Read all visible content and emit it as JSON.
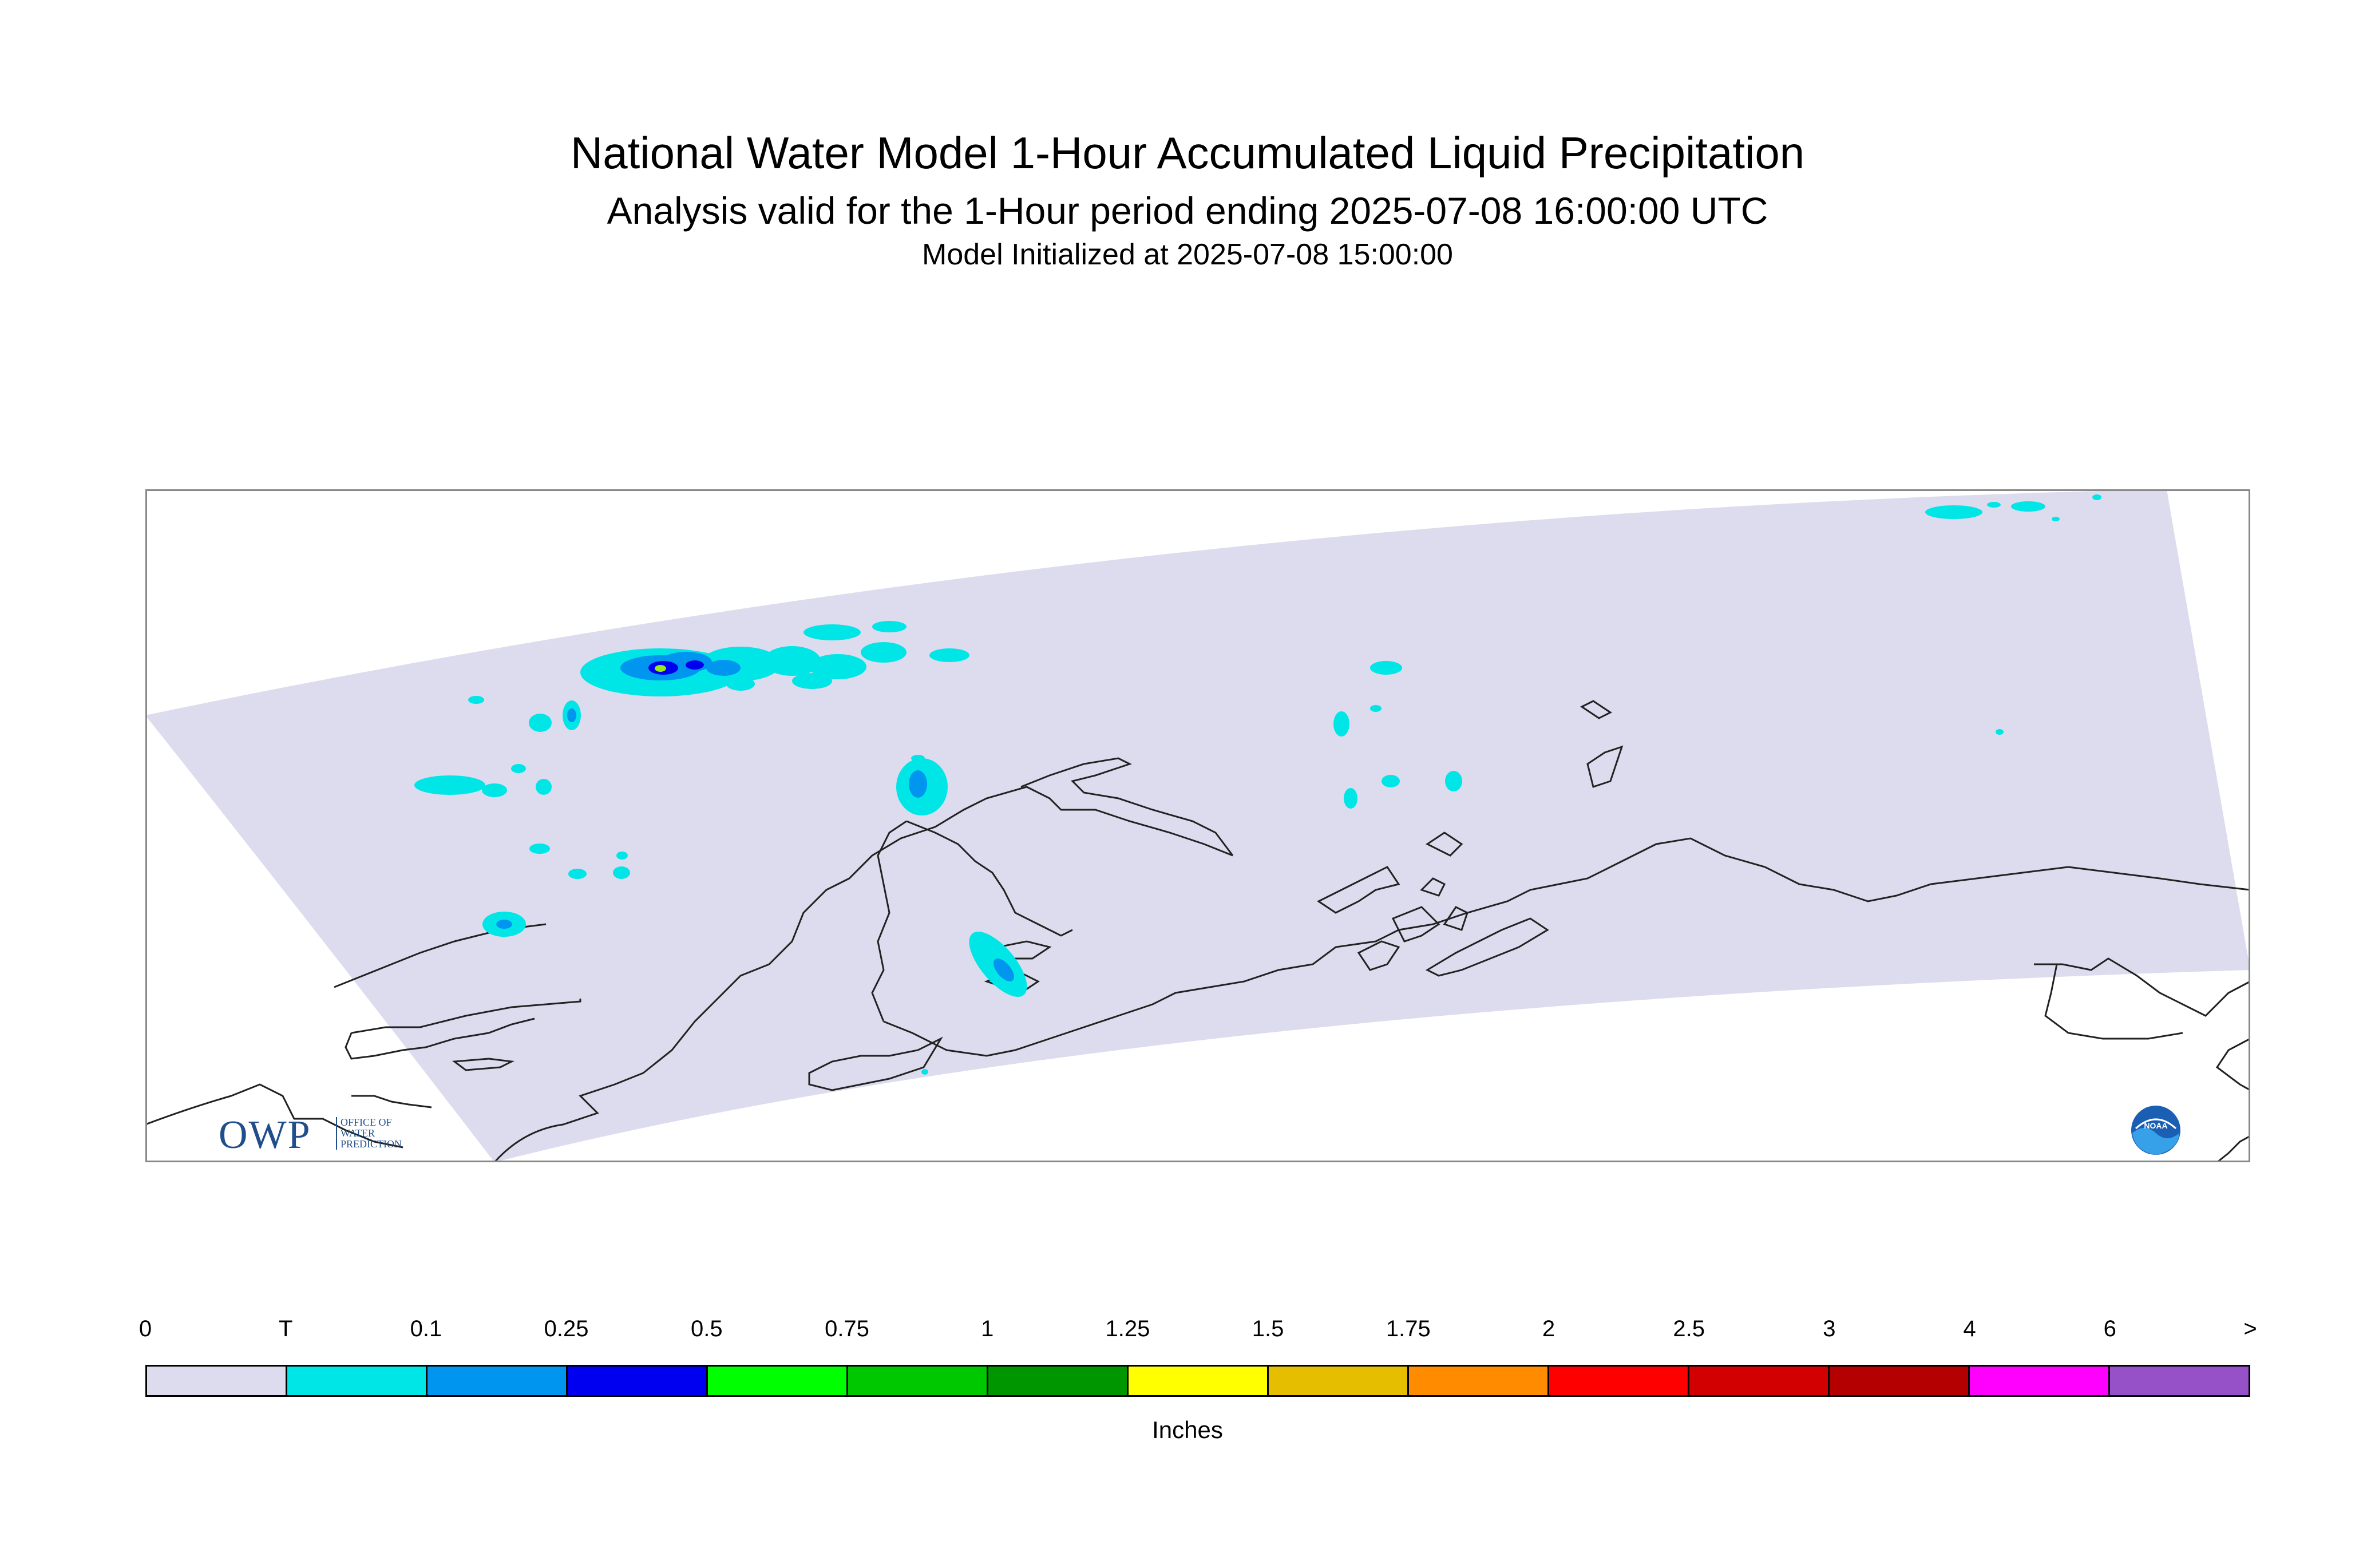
{
  "header": {
    "title": "National Water Model 1-Hour Accumulated Liquid Precipitation",
    "subtitle": "Analysis valid for the 1-Hour period ending 2025-07-08 16:00:00 UTC",
    "init_line": "Model Initialized at 2025-07-08 15:00:00"
  },
  "map": {
    "domain_fill": "#dcdcee",
    "coastline_color": "#222222",
    "frame_color": "#888888"
  },
  "legend": {
    "units": "Inches",
    "ticks": [
      "0",
      "T",
      "0.1",
      "0.25",
      "0.5",
      "0.75",
      "1",
      "1.25",
      "1.5",
      "1.75",
      "2",
      "2.5",
      "3",
      "4",
      "6",
      ">"
    ],
    "colors": [
      "#dcdcee",
      "#00e6e6",
      "#0096f0",
      "#0000f0",
      "#00ff00",
      "#00c800",
      "#009600",
      "#ffff00",
      "#e6be00",
      "#ff8c00",
      "#ff0000",
      "#d20000",
      "#b40000",
      "#ff00ff",
      "#9650c8"
    ]
  },
  "logos": {
    "owp_text": "OWP",
    "owp_subtext": [
      "OFFICE OF",
      "WATER",
      "PREDICTION"
    ],
    "noaa_text": "NOAA"
  }
}
